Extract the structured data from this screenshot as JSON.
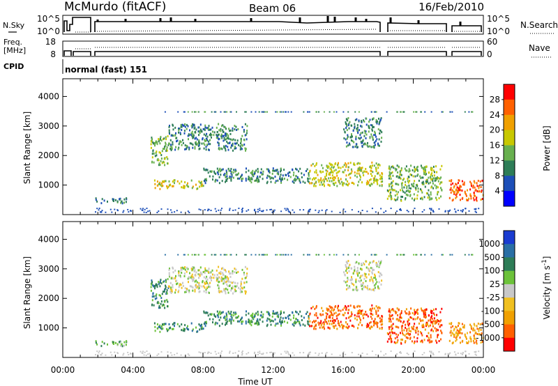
{
  "header": {
    "station": "McMurdo (fitACF)",
    "beam": "Beam 06",
    "date": "16/Feb/2010"
  },
  "left_labels": {
    "nsky": "N.Sky",
    "freq": "Freq.",
    "freq_unit": "[MHz]",
    "cpid": "CPID"
  },
  "right_labels": {
    "nsearch": "N.Search",
    "nave": "Nave"
  },
  "noise_axis": {
    "top": "10^5",
    "bottom": "10^0"
  },
  "freq_axis": {
    "top": "18",
    "bottom": "8"
  },
  "nave_axis": {
    "top": "60",
    "bottom": "0"
  },
  "cpid_text": "normal (fast) 151",
  "x_axis": {
    "label": "Time UT",
    "ticks": [
      "00:00",
      "04:00",
      "08:00",
      "12:00",
      "16:00",
      "20:00",
      "00:00"
    ]
  },
  "power_colorbar": {
    "label": "Power [dB]",
    "ticks": [
      "4",
      "8",
      "12",
      "16",
      "20",
      "24",
      "28"
    ],
    "colors": [
      "#0000ff",
      "#1d4fb8",
      "#2e7d57",
      "#68b04f",
      "#c8c800",
      "#f0a000",
      "#ff6000",
      "#ff0000"
    ]
  },
  "velocity_colorbar": {
    "label": "Velocity [m s^-1]",
    "ticks": [
      "1000",
      "500",
      "100",
      "25",
      "-25",
      "-100",
      "-500",
      "-1000"
    ],
    "colors": [
      "#1a3bd0",
      "#2a6fa5",
      "#2e7d57",
      "#6cc23a",
      "#c8c8c8",
      "#f0c020",
      "#f0a000",
      "#ff6000",
      "#ff0000"
    ]
  },
  "chart_data": [
    {
      "type": "heatmap",
      "title": "",
      "xlabel": "",
      "ylabel": "Slant Range [km]",
      "xlim": [
        "00:00",
        "24:00"
      ],
      "ylim": [
        0,
        4600
      ],
      "y_ticks": [
        1000,
        2000,
        3000,
        4000
      ],
      "colorbar": "Power [dB]",
      "echo_regions": [
        {
          "t0": 1.8,
          "t1": 3.6,
          "r0": 400,
          "r1": 600,
          "level": 2
        },
        {
          "t0": 5.0,
          "t1": 6.0,
          "r0": 1700,
          "r1": 2700,
          "level": 3
        },
        {
          "t0": 5.2,
          "t1": 8.0,
          "r0": 900,
          "r1": 1200,
          "level": 4
        },
        {
          "t0": 6.0,
          "t1": 10.5,
          "r0": 2200,
          "r1": 3100,
          "level": 2
        },
        {
          "t0": 8.0,
          "t1": 14.0,
          "r0": 1100,
          "r1": 1600,
          "level": 2
        },
        {
          "t0": 14.0,
          "t1": 18.2,
          "r0": 1000,
          "r1": 1800,
          "level": 4
        },
        {
          "t0": 16.0,
          "t1": 18.2,
          "r0": 2300,
          "r1": 3300,
          "level": 2
        },
        {
          "t0": 18.5,
          "t1": 21.6,
          "r0": 500,
          "r1": 1700,
          "level": 3
        },
        {
          "t0": 22.0,
          "t1": 24.0,
          "r0": 500,
          "r1": 1200,
          "level": 6
        }
      ]
    },
    {
      "type": "heatmap",
      "title": "",
      "xlabel": "Time UT",
      "ylabel": "Slant Range [km]",
      "xlim": [
        "00:00",
        "24:00"
      ],
      "ylim": [
        0,
        4600
      ],
      "y_ticks": [
        1000,
        2000,
        3000,
        4000
      ],
      "colorbar": "Velocity [m s^-1]",
      "echo_regions": [
        {
          "t0": 1.8,
          "t1": 3.6,
          "r0": 400,
          "r1": 600,
          "level": 3
        },
        {
          "t0": 5.0,
          "t1": 6.0,
          "r0": 1700,
          "r1": 2700,
          "level": 2
        },
        {
          "t0": 5.2,
          "t1": 8.0,
          "r0": 900,
          "r1": 1200,
          "level": 2
        },
        {
          "t0": 6.0,
          "t1": 10.5,
          "r0": 2200,
          "r1": 3100,
          "level": 4
        },
        {
          "t0": 8.0,
          "t1": 14.0,
          "r0": 1100,
          "r1": 1600,
          "level": 2
        },
        {
          "t0": 14.0,
          "t1": 18.2,
          "r0": 1000,
          "r1": 1800,
          "level": 7
        },
        {
          "t0": 16.0,
          "t1": 18.2,
          "r0": 2300,
          "r1": 3300,
          "level": 4
        },
        {
          "t0": 18.5,
          "t1": 21.6,
          "r0": 500,
          "r1": 1700,
          "level": 7
        },
        {
          "t0": 22.0,
          "t1": 24.0,
          "r0": 500,
          "r1": 1200,
          "level": 6
        }
      ]
    }
  ]
}
